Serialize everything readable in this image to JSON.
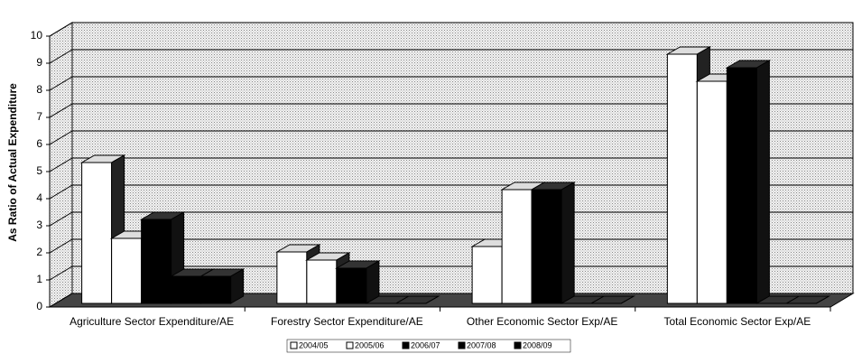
{
  "chart_data": {
    "type": "bar3d",
    "y_label": "As Ratio of Actual Expenditure",
    "categories": [
      "Agriculture Sector Expenditure/AE",
      "Forestry Sector Expenditure/AE",
      "Other Economic Sector Exp/AE",
      "Total Economic Sector Exp/AE"
    ],
    "series": [
      {
        "name": "2004/05",
        "color": "#ffffff",
        "values": [
          5.2,
          1.9,
          2.1,
          9.2
        ]
      },
      {
        "name": "2005/06",
        "color": "#ffffff",
        "values": [
          2.4,
          1.6,
          4.2,
          8.2
        ]
      },
      {
        "name": "2006/07",
        "color": "#000000",
        "values": [
          3.1,
          1.3,
          4.2,
          8.7
        ]
      },
      {
        "name": "2007/08",
        "color": "#000000",
        "values": [
          1.0,
          0,
          0,
          0
        ]
      },
      {
        "name": "2008/09",
        "color": "#000000",
        "values": [
          1.0,
          0,
          0,
          0
        ]
      }
    ],
    "ylim": [
      0,
      10
    ],
    "yticks": [
      0,
      1,
      2,
      3,
      4,
      5,
      6,
      7,
      8,
      9,
      10
    ],
    "grid": true
  }
}
